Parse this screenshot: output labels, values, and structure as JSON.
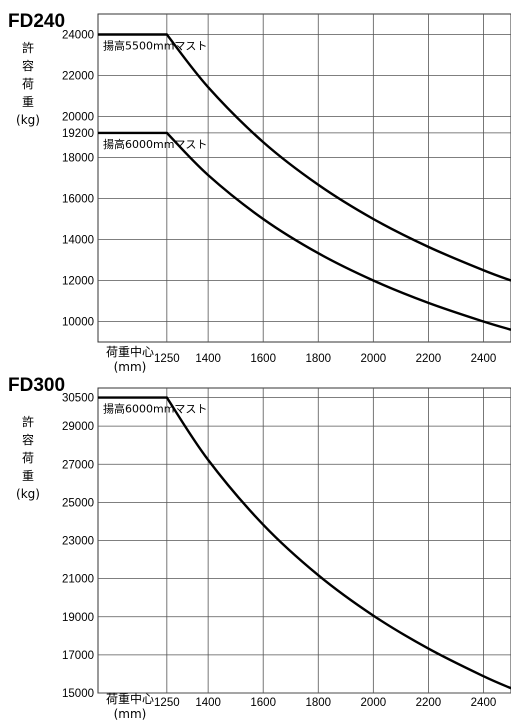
{
  "chart_data": [
    {
      "type": "line",
      "title": "FD240",
      "ylabel": [
        "許",
        "容",
        "荷",
        "重",
        "(kg)"
      ],
      "xlabel": [
        "荷重中心",
        "(mm)"
      ],
      "x_ticks": [
        1250,
        1400,
        1600,
        1800,
        2000,
        2200,
        2400
      ],
      "y_ticks": [
        24000,
        22000,
        20000,
        19200,
        18000,
        16000,
        14000,
        12000,
        10000
      ],
      "xlim": [
        1000,
        2500
      ],
      "ylim": [
        9000,
        25000
      ],
      "v_grid_x": [
        1250,
        1400,
        1600,
        1800,
        2000,
        2200,
        2400
      ],
      "h_grid_y": [
        24000,
        22000,
        20000,
        19200,
        18000,
        16000,
        14000,
        12000,
        10000
      ],
      "series": [
        {
          "name": "揚高5500mmマスト",
          "x": [
            1000,
            1250,
            1400,
            1600,
            1800,
            2000,
            2200,
            2400,
            2500
          ],
          "y": [
            24000,
            24000,
            21430,
            18750,
            16670,
            15000,
            13640,
            12500,
            12000
          ]
        },
        {
          "name": "揚高6000mmマスト",
          "x": [
            1000,
            1250,
            1400,
            1600,
            1800,
            2000,
            2200,
            2400,
            2500
          ],
          "y": [
            19200,
            19200,
            17140,
            15000,
            13330,
            12000,
            10910,
            10000,
            9600
          ]
        }
      ]
    },
    {
      "type": "line",
      "title": "FD300",
      "ylabel": [
        "許",
        "容",
        "荷",
        "重",
        "(kg)"
      ],
      "xlabel": [
        "荷重中心",
        "(mm)"
      ],
      "x_ticks": [
        1250,
        1400,
        1600,
        1800,
        2000,
        2200,
        2400
      ],
      "y_ticks": [
        30500,
        29000,
        27000,
        25000,
        23000,
        21000,
        19000,
        17000,
        15000
      ],
      "xlim": [
        1000,
        2500
      ],
      "ylim": [
        15000,
        31000
      ],
      "v_grid_x": [
        1250,
        1400,
        1600,
        1800,
        2000,
        2200,
        2400
      ],
      "h_grid_y": [
        30500,
        29000,
        27000,
        25000,
        23000,
        21000,
        19000,
        17000,
        15000
      ],
      "series": [
        {
          "name": "揚高6000mmマスト",
          "x": [
            1000,
            1250,
            1400,
            1600,
            1800,
            2000,
            2200,
            2400,
            2500
          ],
          "y": [
            30500,
            30500,
            27230,
            23830,
            21180,
            19060,
            17330,
            15880,
            15250
          ]
        }
      ]
    }
  ]
}
